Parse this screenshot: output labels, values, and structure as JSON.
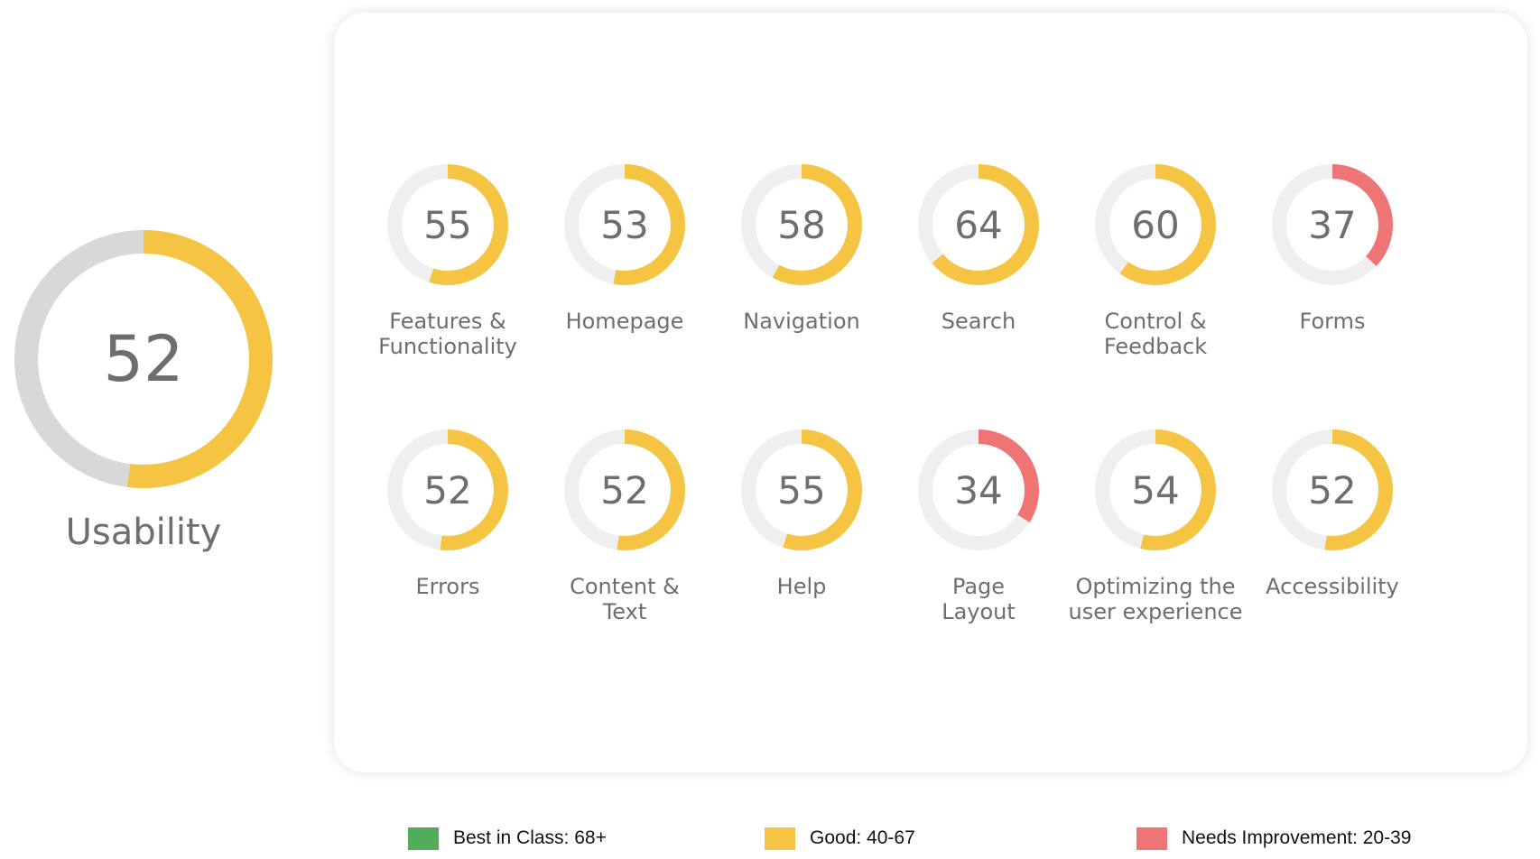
{
  "colors": {
    "best": "#52ad5a",
    "good": "#f5c443",
    "needs": "#ef7575",
    "track_main": "#d8d8d8",
    "track_small": "#efefef"
  },
  "overall": {
    "value": "52",
    "label": "Usability",
    "score": 52
  },
  "chart_data": {
    "type": "radial-gauge",
    "max": 100,
    "categories": [
      {
        "label": "Features &\nFunctionality",
        "value": 55
      },
      {
        "label": "Homepage",
        "value": 53
      },
      {
        "label": "Navigation",
        "value": 58
      },
      {
        "label": "Search",
        "value": 64
      },
      {
        "label": "Control &\nFeedback",
        "value": 60
      },
      {
        "label": "Forms",
        "value": 37
      },
      {
        "label": "Errors",
        "value": 52
      },
      {
        "label": "Content &\nText",
        "value": 52
      },
      {
        "label": "Help",
        "value": 55
      },
      {
        "label": "Page\nLayout",
        "value": 34
      },
      {
        "label": "Optimizing the\nuser experience",
        "value": 54
      },
      {
        "label": "Accessibility",
        "value": 52
      }
    ]
  },
  "legend": [
    {
      "label": "Best in Class: 68+",
      "color": "#52ad5a"
    },
    {
      "label": "Good: 40-67",
      "color": "#f5c443"
    },
    {
      "label": "Needs Improvement: 20-39",
      "color": "#ef7575"
    }
  ]
}
